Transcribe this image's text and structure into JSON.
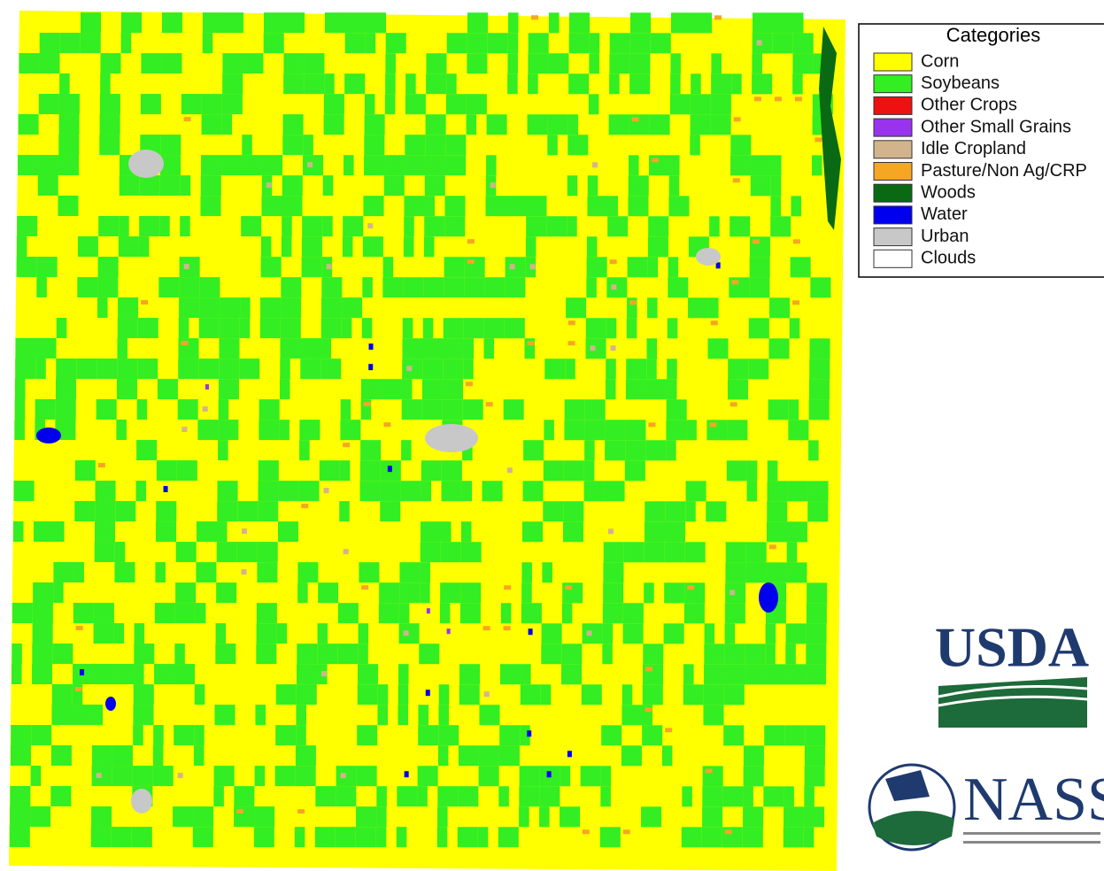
{
  "legend": {
    "title": "Categories",
    "items": [
      {
        "label": "Corn",
        "color": "#ffff00"
      },
      {
        "label": "Soybeans",
        "color": "#33ee22"
      },
      {
        "label": "Other Crops",
        "color": "#ee1111"
      },
      {
        "label": "Other Small Grains",
        "color": "#9933ee"
      },
      {
        "label": "Idle Cropland",
        "color": "#d2b48c"
      },
      {
        "label": "Pasture/Non Ag/CRP",
        "color": "#f5a623"
      },
      {
        "label": "Woods",
        "color": "#0a6a14"
      },
      {
        "label": "Water",
        "color": "#0000ee"
      },
      {
        "label": "Urban",
        "color": "#c8c8c8"
      },
      {
        "label": "Clouds",
        "color": "#ffffff"
      }
    ]
  },
  "logos": {
    "usda": "USDA",
    "nass": "NASS"
  }
}
